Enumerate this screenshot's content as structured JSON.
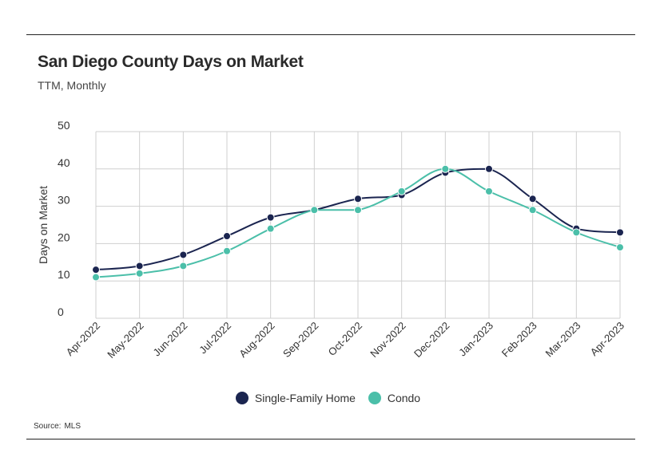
{
  "title": "San Diego County Days on Market",
  "subtitle": "TTM, Monthly",
  "source": {
    "label": "Source:",
    "value": "MLS"
  },
  "chart_data": {
    "type": "line",
    "title": "San Diego County Days on Market",
    "subtitle": "TTM, Monthly",
    "xlabel": "",
    "ylabel": "Days on Market",
    "ylim": [
      0,
      50
    ],
    "yticks": [
      0,
      10,
      20,
      30,
      40,
      50
    ],
    "grid": true,
    "legend_position": "bottom",
    "categories": [
      "Apr-2022",
      "May-2022",
      "Jun-2022",
      "Jul-2022",
      "Aug-2022",
      "Sep-2022",
      "Oct-2022",
      "Nov-2022",
      "Dec-2022",
      "Jan-2023",
      "Feb-2023",
      "Mar-2023",
      "Apr-2023"
    ],
    "series": [
      {
        "name": "Single-Family Home",
        "color": "#1b2550",
        "values": [
          13,
          14,
          17,
          22,
          27,
          29,
          32,
          33,
          39,
          40,
          32,
          24,
          23
        ]
      },
      {
        "name": "Condo",
        "color": "#4bbfa9",
        "values": [
          11,
          12,
          14,
          18,
          24,
          29,
          29,
          34,
          40,
          34,
          29,
          23,
          19
        ]
      }
    ]
  }
}
